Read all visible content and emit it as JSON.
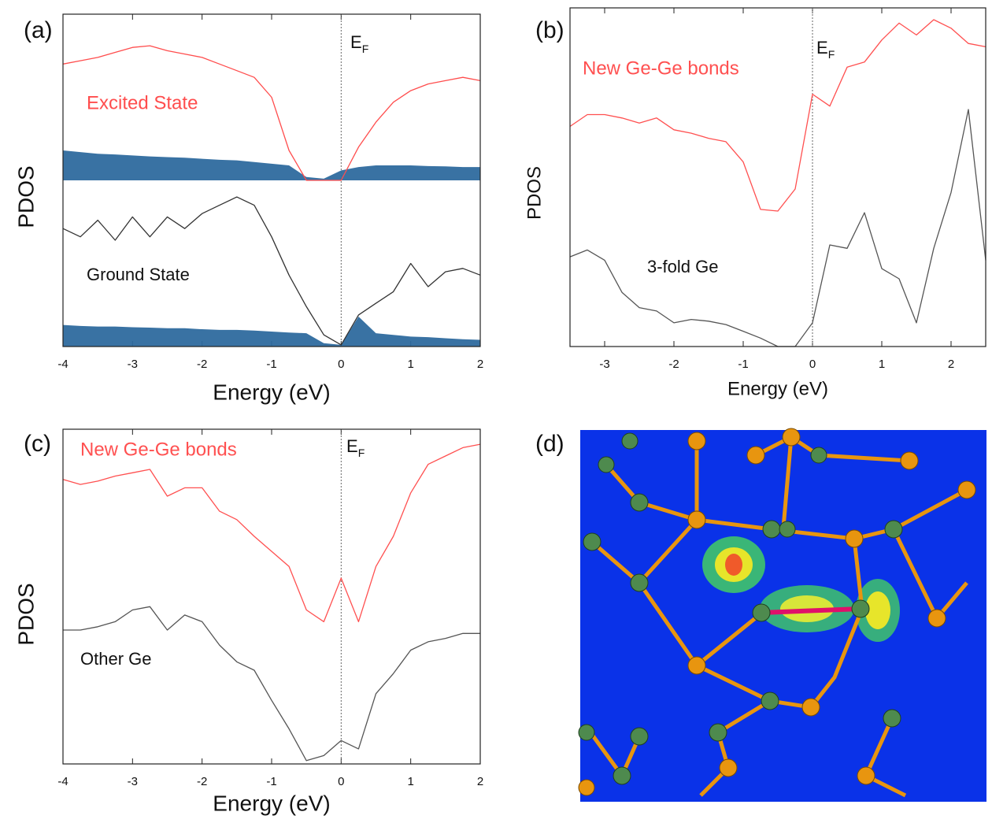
{
  "chart_data": [
    {
      "type": "line",
      "label": "(a)",
      "xlabel": "Energy (eV)",
      "ylabel": "PDOS",
      "xlim": [
        -4,
        2
      ],
      "xticks": [
        -4,
        -3,
        -2,
        -1,
        0,
        1,
        2
      ],
      "ylim": [
        0,
        10
      ],
      "vline": 0,
      "annotation": {
        "text": "E",
        "subscript": "F"
      },
      "x": [
        -4,
        -3.75,
        -3.5,
        -3.25,
        -3,
        -2.75,
        -2.5,
        -2.25,
        -2,
        -1.75,
        -1.5,
        -1.25,
        -1,
        -0.75,
        -0.5,
        -0.25,
        0,
        0.25,
        0.5,
        0.75,
        1,
        1.25,
        1.5,
        1.75,
        2
      ],
      "series": [
        {
          "type": "band",
          "color": "#2e6a9e",
          "low": [
            5,
            5,
            5,
            5,
            5,
            5,
            5,
            5,
            5,
            5,
            5,
            5,
            5,
            5,
            5,
            5,
            5,
            5,
            5,
            5,
            5,
            5,
            5,
            5,
            5
          ],
          "values": [
            5.9,
            5.85,
            5.8,
            5.78,
            5.75,
            5.72,
            5.7,
            5.68,
            5.65,
            5.62,
            5.6,
            5.55,
            5.5,
            5.45,
            5.1,
            5.05,
            5.3,
            5.4,
            5.45,
            5.45,
            5.45,
            5.43,
            5.42,
            5.4,
            5.4
          ]
        },
        {
          "type": "band",
          "color": "#2e6a9e",
          "low": [
            0,
            0,
            0,
            0,
            0,
            0,
            0,
            0,
            0,
            0,
            0,
            0,
            0,
            0,
            0,
            0,
            0,
            0,
            0,
            0,
            0,
            0,
            0,
            0,
            0
          ],
          "values": [
            0.65,
            0.62,
            0.6,
            0.6,
            0.58,
            0.57,
            0.55,
            0.55,
            0.52,
            0.5,
            0.5,
            0.48,
            0.45,
            0.42,
            0.4,
            0.1,
            0.05,
            0.9,
            0.4,
            0.35,
            0.3,
            0.28,
            0.25,
            0.22,
            0.2
          ]
        },
        {
          "name": "Excited State",
          "color": "#ff4d4d",
          "values": [
            8.5,
            8.6,
            8.7,
            8.85,
            9.0,
            9.05,
            8.9,
            8.8,
            8.7,
            8.5,
            8.3,
            8.1,
            7.5,
            5.9,
            5.0,
            5.0,
            5.0,
            6.0,
            6.75,
            7.35,
            7.7,
            7.9,
            8.0,
            8.1,
            8.0
          ]
        },
        {
          "name": "Ground State",
          "color": "#333333",
          "values": [
            3.55,
            3.3,
            3.8,
            3.2,
            3.9,
            3.3,
            3.9,
            3.55,
            4.0,
            4.25,
            4.5,
            4.25,
            3.3,
            2.15,
            1.2,
            0.35,
            0.05,
            0.95,
            1.3,
            1.65,
            2.5,
            1.8,
            2.25,
            2.35,
            2.15
          ]
        }
      ]
    },
    {
      "type": "line",
      "label": "(b)",
      "xlabel": "Energy (eV)",
      "ylabel": "PDOS",
      "xlim": [
        -3.5,
        2.5
      ],
      "xticks": [
        -3,
        -2,
        -1,
        0,
        1,
        2
      ],
      "ylim": [
        0,
        10
      ],
      "vline": 0,
      "annotation": {
        "text": "E",
        "subscript": "F"
      },
      "x": [
        -3.5,
        -3.25,
        -3,
        -2.75,
        -2.5,
        -2.25,
        -2,
        -1.75,
        -1.5,
        -1.25,
        -1,
        -0.75,
        -0.5,
        -0.25,
        0,
        0.25,
        0.5,
        0.75,
        1,
        1.25,
        1.5,
        1.75,
        2,
        2.25,
        2.5
      ],
      "series": [
        {
          "name": "New Ge-Ge bonds",
          "color": "#ff5050",
          "values": [
            6.5,
            6.85,
            6.85,
            6.75,
            6.6,
            6.75,
            6.4,
            6.3,
            6.15,
            6.05,
            5.45,
            4.05,
            4.0,
            4.65,
            7.45,
            7.1,
            8.25,
            8.4,
            9.05,
            9.55,
            9.2,
            9.65,
            9.4,
            8.95,
            8.85
          ]
        },
        {
          "name": "3-fold Ge",
          "color": "#555555",
          "values": [
            2.65,
            2.85,
            2.55,
            1.6,
            1.15,
            1.05,
            0.7,
            0.8,
            0.75,
            0.65,
            0.45,
            0.25,
            0,
            0,
            0.7,
            3.0,
            2.9,
            3.95,
            2.3,
            2.0,
            0.7,
            2.9,
            4.55,
            7.0,
            2.55
          ]
        }
      ]
    },
    {
      "type": "line",
      "label": "(c)",
      "xlabel": "Energy (eV)",
      "ylabel": "PDOS",
      "xlim": [
        -4,
        2
      ],
      "xticks": [
        -4,
        -3,
        -2,
        -1,
        0,
        1,
        2
      ],
      "ylim": [
        0,
        10
      ],
      "vline": 0,
      "annotation": {
        "text": "E",
        "subscript": "F"
      },
      "x": [
        -4,
        -3.75,
        -3.5,
        -3.25,
        -3,
        -2.75,
        -2.5,
        -2.25,
        -2,
        -1.75,
        -1.5,
        -1.25,
        -1,
        -0.75,
        -0.5,
        -0.25,
        0,
        0.25,
        0.5,
        0.75,
        1,
        1.25,
        1.5,
        1.75,
        2
      ],
      "series": [
        {
          "name": "New Ge-Ge bonds",
          "color": "#ff5050",
          "values": [
            8.5,
            8.35,
            8.45,
            8.6,
            8.7,
            8.8,
            8.0,
            8.25,
            8.25,
            7.55,
            7.3,
            6.8,
            6.35,
            5.9,
            4.6,
            4.25,
            5.55,
            4.25,
            5.9,
            6.8,
            8.1,
            8.95,
            9.2,
            9.45,
            9.55
          ]
        },
        {
          "name": "Other  Ge",
          "color": "#555555",
          "values": [
            4.0,
            4.0,
            4.1,
            4.25,
            4.6,
            4.7,
            4.0,
            4.45,
            4.25,
            3.55,
            3.05,
            2.8,
            1.9,
            1.05,
            0.1,
            0.25,
            0.7,
            0.45,
            2.1,
            2.7,
            3.4,
            3.65,
            3.75,
            3.9,
            3.9
          ]
        }
      ]
    }
  ],
  "image_panel": {
    "label": "(d)"
  }
}
